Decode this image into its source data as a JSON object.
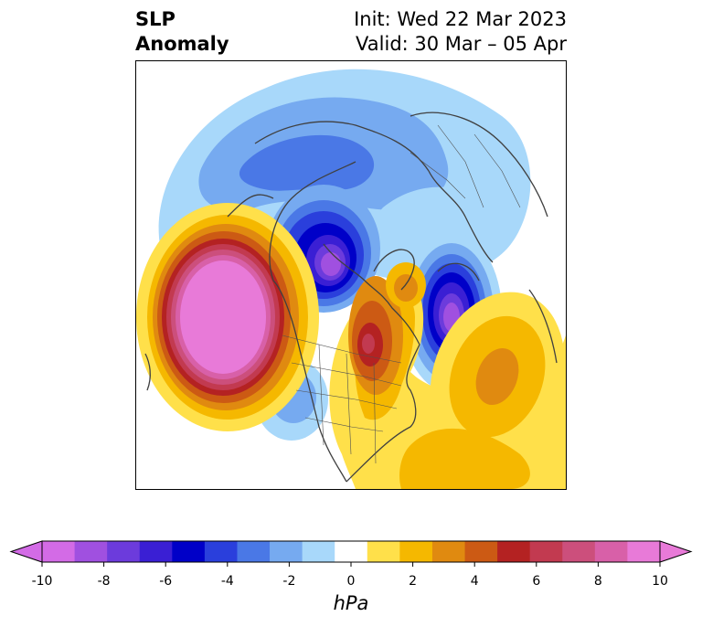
{
  "title": {
    "left_line1": "SLP",
    "left_line2": "Anomaly",
    "right_line1": "Init: Wed 22 Mar 2023",
    "right_line2": "Valid: 30 Mar – 05 Apr"
  },
  "colorbar": {
    "unit": "hPa",
    "levels": [
      -10,
      -9,
      -8,
      -7,
      -6,
      -5,
      -4,
      -3,
      -2,
      -1,
      1,
      2,
      3,
      4,
      5,
      6,
      7,
      8,
      9,
      10
    ],
    "colors": [
      "#d36be6",
      "#a050e0",
      "#6c3bdc",
      "#3a1fd4",
      "#0000c8",
      "#2a3fdc",
      "#4a78e6",
      "#76aaf0",
      "#a8d8fa",
      "#ffffff",
      "#ffe04a",
      "#f5b800",
      "#e08a10",
      "#cc5a14",
      "#b42222",
      "#c23a50",
      "#cc4f7c",
      "#d860a8",
      "#e87ad8"
    ],
    "under_color": "#d36be6",
    "over_color": "#e87ad8",
    "tick_labels": [
      "-10",
      "-8",
      "-6",
      "-4",
      "-2",
      "0",
      "2",
      "4",
      "6",
      "8",
      "10"
    ]
  }
}
